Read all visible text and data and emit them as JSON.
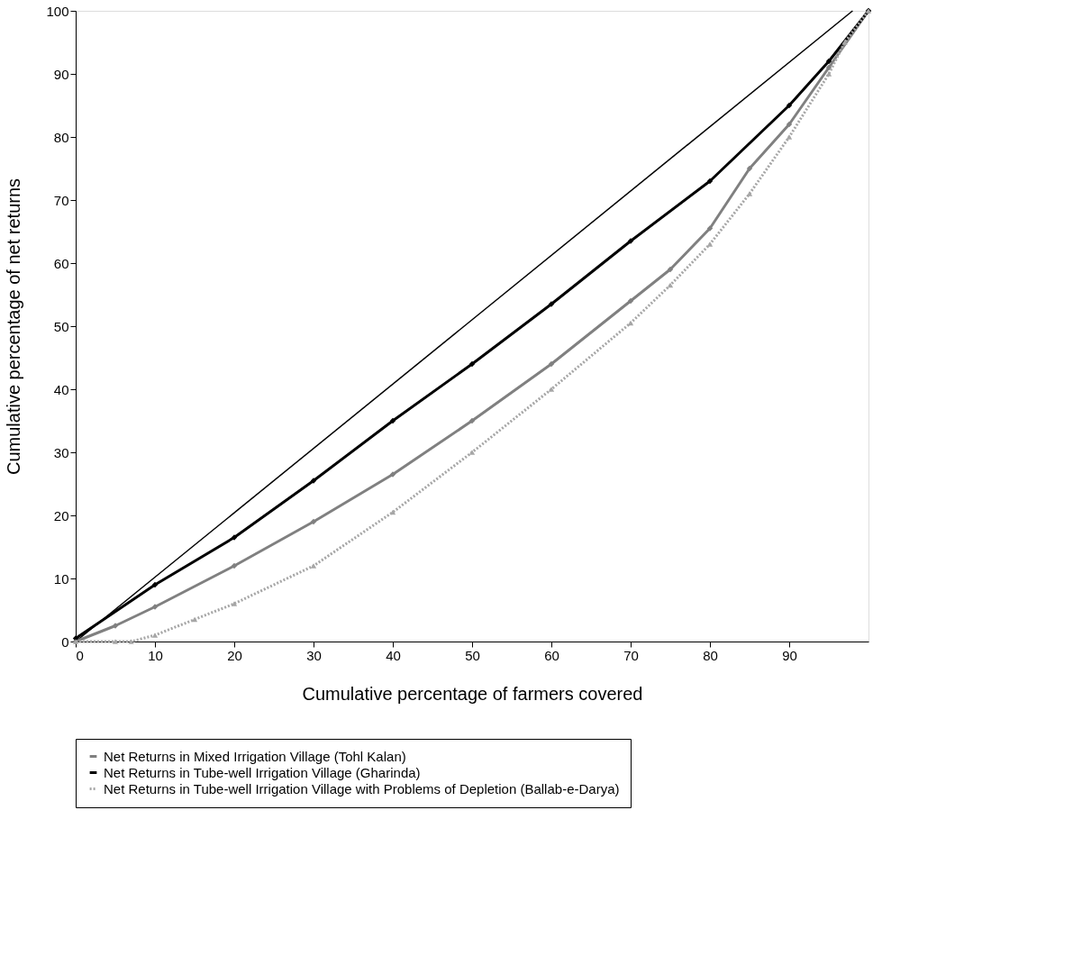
{
  "chart_data": {
    "type": "line",
    "xlabel": "Cumulative percentage of farmers covered",
    "ylabel": "Cumulative percentage of net returns",
    "xlim": [
      0,
      100
    ],
    "xticks": [
      0,
      10,
      20,
      30,
      40,
      50,
      60,
      70,
      80,
      90
    ],
    "ylim": [
      0,
      100
    ],
    "yticks": [
      0,
      10,
      20,
      30,
      40,
      50,
      60,
      70,
      80,
      90,
      100
    ],
    "grid": false,
    "legend": "bottom",
    "series": [
      {
        "name": "Net Returns in Mixed Irrigation Village (Tohl Kalan)",
        "color": "#808080",
        "marker": "diamond",
        "line_style": "solid",
        "x": [
          0,
          5,
          10,
          20,
          30,
          40,
          50,
          60,
          70,
          75,
          80,
          85,
          90,
          95,
          100
        ],
        "values": [
          0,
          2.5,
          5.5,
          12,
          19,
          26.5,
          35,
          44,
          54,
          59,
          65.5,
          75,
          82,
          91,
          100
        ]
      },
      {
        "name": "Net Returns in Tube-well Irrigation Village (Gharinda)",
        "color": "#000000",
        "marker": "diamond",
        "line_style": "solid",
        "x": [
          0,
          10,
          20,
          30,
          40,
          50,
          60,
          70,
          80,
          90,
          95,
          100
        ],
        "values": [
          0.5,
          9,
          16.5,
          25.5,
          35,
          44,
          53.5,
          63.5,
          73,
          85,
          92,
          100
        ]
      },
      {
        "name": "Net Returns in Tube-well Irrigation Village with Problems of Depletion (Ballab-e-Darya)",
        "color": "#a6a6a6",
        "marker": "triangle",
        "line_style": "dotted",
        "x": [
          0,
          5,
          7,
          10,
          15,
          20,
          30,
          40,
          50,
          60,
          70,
          75,
          80,
          85,
          90,
          95,
          97,
          100
        ],
        "values": [
          0,
          0,
          0,
          1,
          3.5,
          6,
          12,
          20.5,
          30,
          40,
          50.5,
          56.5,
          63,
          71,
          80,
          90,
          95,
          100
        ]
      },
      {
        "color": "#000000",
        "marker": "none",
        "line_style": "solid",
        "x": [
          0,
          98
        ],
        "values": [
          0,
          100
        ]
      }
    ]
  }
}
